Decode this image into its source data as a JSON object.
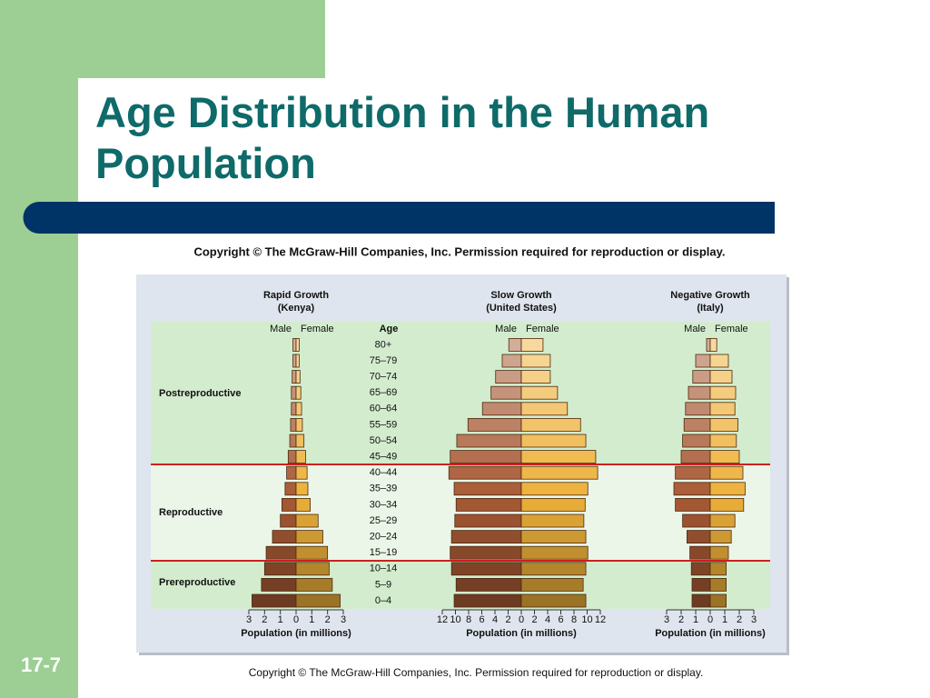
{
  "slide": {
    "title": "Age Distribution in the Human Population",
    "number": "17-7",
    "copyright_top": "Copyright © The McGraw-Hill Companies, Inc. Permission required for reproduction or display.",
    "copyright_bottom": "Copyright © The McGraw-Hill Companies, Inc. Permission required for reproduction or display."
  },
  "figure": {
    "age_label": "Age",
    "categories": [
      "0–4",
      "5–9",
      "10–14",
      "15–19",
      "20–24",
      "25–29",
      "30–34",
      "35–39",
      "40–44",
      "45–49",
      "50–54",
      "55–59",
      "60–64",
      "65–69",
      "70–74",
      "75–79",
      "80+"
    ],
    "groups": [
      {
        "label": "Prereproductive"
      },
      {
        "label": "Reproductive"
      },
      {
        "label": "Postreproductive"
      }
    ]
  },
  "chart_data": [
    {
      "type": "pyramid",
      "title": "Rapid Growth",
      "subtitle": "(Kenya)",
      "xlabel": "Population (in millions)",
      "xlim": [
        0,
        3
      ],
      "xticks": [
        0,
        1,
        2,
        3
      ],
      "series": [
        {
          "name": "Male",
          "color": "#a85a35",
          "values": [
            2.8,
            2.2,
            2.0,
            1.9,
            1.5,
            1.0,
            0.9,
            0.7,
            0.6,
            0.5,
            0.4,
            0.35,
            0.3,
            0.3,
            0.25,
            0.2,
            0.2
          ]
        },
        {
          "name": "Female",
          "color": "#eeb13a",
          "values": [
            2.8,
            2.3,
            2.1,
            2.0,
            1.7,
            1.4,
            0.9,
            0.75,
            0.7,
            0.6,
            0.5,
            0.4,
            0.35,
            0.3,
            0.25,
            0.2,
            0.2
          ]
        }
      ]
    },
    {
      "type": "pyramid",
      "title": "Slow Growth",
      "subtitle": "(United States)",
      "xlabel": "Population (in millions)",
      "xlim": [
        0,
        12
      ],
      "xticks": [
        0,
        2,
        4,
        6,
        8,
        10,
        12
      ],
      "series": [
        {
          "name": "Male",
          "color": "#a85a35",
          "values": [
            10.2,
            9.9,
            10.6,
            10.8,
            10.6,
            10.1,
            9.9,
            10.2,
            11.0,
            10.8,
            9.8,
            8.1,
            5.9,
            4.6,
            3.9,
            2.9,
            1.9
          ]
        },
        {
          "name": "Female",
          "color": "#eeb13a",
          "values": [
            9.8,
            9.4,
            9.8,
            10.1,
            9.8,
            9.5,
            9.7,
            10.1,
            11.6,
            11.3,
            9.8,
            9.0,
            7.0,
            5.5,
            4.4,
            4.4,
            3.3
          ]
        }
      ]
    },
    {
      "type": "pyramid",
      "title": "Negative Growth",
      "subtitle": "(Italy)",
      "xlabel": "Population (in millions)",
      "xlim": [
        0,
        3
      ],
      "xticks": [
        0,
        1,
        2,
        3
      ],
      "series": [
        {
          "name": "Male",
          "color": "#a85a35",
          "values": [
            1.25,
            1.25,
            1.3,
            1.4,
            1.6,
            1.9,
            2.4,
            2.5,
            2.4,
            2.0,
            1.9,
            1.8,
            1.7,
            1.5,
            1.2,
            1.0,
            0.25
          ]
        },
        {
          "name": "Female",
          "color": "#eeb13a",
          "values": [
            1.1,
            1.1,
            1.1,
            1.25,
            1.45,
            1.7,
            2.3,
            2.4,
            2.25,
            2.0,
            1.8,
            1.9,
            1.7,
            1.75,
            1.5,
            1.25,
            0.45
          ]
        }
      ]
    }
  ]
}
